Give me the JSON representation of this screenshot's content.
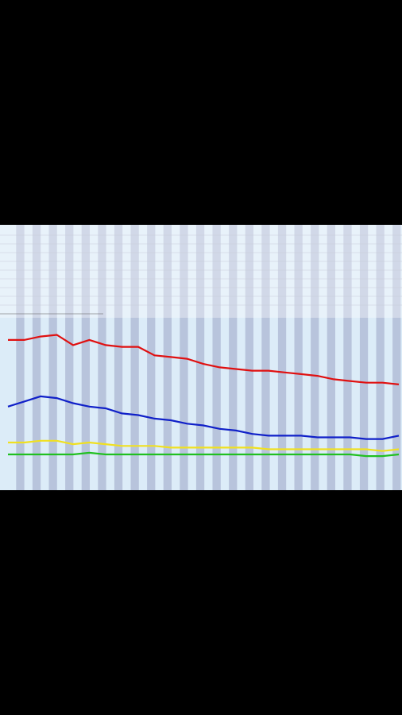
{
  "chart_data": {
    "type": "line",
    "ylim": [
      0,
      100
    ],
    "series": [
      {
        "color": "#e01010",
        "values": [
          87,
          87,
          89,
          90,
          84,
          87,
          84,
          83,
          83,
          78,
          77,
          76,
          73,
          71,
          70,
          69,
          69,
          68,
          67,
          66,
          64,
          63,
          62,
          62,
          61
        ]
      },
      {
        "color": "#1020c8",
        "values": [
          48,
          51,
          54,
          53,
          50,
          48,
          47,
          44,
          43,
          41,
          40,
          38,
          37,
          35,
          34,
          32,
          31,
          31,
          31,
          30,
          30,
          30,
          29,
          29,
          31
        ]
      },
      {
        "color": "#f0e020",
        "values": [
          27,
          27,
          28,
          28,
          26,
          27,
          26,
          25,
          25,
          25,
          24,
          24,
          24,
          24,
          24,
          24,
          23,
          23,
          23,
          23,
          23,
          23,
          23,
          22,
          23
        ]
      },
      {
        "color": "#20c020",
        "values": [
          20,
          20,
          20,
          20,
          20,
          21,
          20,
          20,
          20,
          20,
          20,
          20,
          20,
          20,
          20,
          20,
          20,
          20,
          20,
          20,
          20,
          20,
          19,
          19,
          20
        ]
      }
    ]
  }
}
